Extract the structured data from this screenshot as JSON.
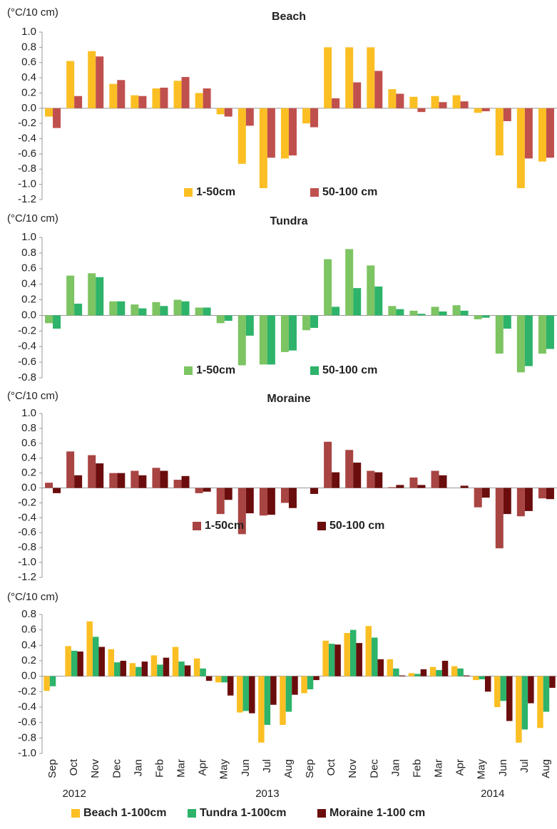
{
  "chart_data": [
    {
      "type": "bar",
      "title": "Beach",
      "y_unit_label": "(°C/10 cm)",
      "categories": [
        "Sep",
        "Oct",
        "Nov",
        "Dec",
        "Jan",
        "Feb",
        "Mar",
        "Apr",
        "May",
        "Jun",
        "Jul",
        "Aug",
        "Sep",
        "Oct",
        "Nov",
        "Dec",
        "Jan",
        "Feb",
        "Mar",
        "Apr",
        "May",
        "Jun",
        "Jul",
        "Aug"
      ],
      "series": [
        {
          "name": "1-50cm",
          "color": "#fbbf24",
          "values": [
            -0.11,
            0.62,
            0.75,
            0.32,
            0.17,
            0.26,
            0.36,
            0.2,
            -0.08,
            -0.73,
            -1.05,
            -0.66,
            -0.2,
            0.8,
            0.8,
            0.8,
            0.25,
            0.15,
            0.16,
            0.17,
            -0.06,
            -0.62,
            -1.05,
            -0.7
          ]
        },
        {
          "name": "50-100 cm",
          "color": "#c0504d",
          "values": [
            -0.26,
            0.16,
            0.68,
            0.37,
            0.16,
            0.27,
            0.41,
            0.26,
            -0.11,
            -0.23,
            -0.65,
            -0.62,
            -0.25,
            0.13,
            0.34,
            0.49,
            0.19,
            -0.05,
            0.08,
            0.09,
            -0.04,
            -0.17,
            -0.66,
            -0.65
          ]
        }
      ],
      "ylim": [
        -1.2,
        1.0
      ],
      "yticks": [
        {
          "value": 1.0,
          "label": "1.0"
        },
        {
          "value": 0.8,
          "label": "0.8"
        },
        {
          "value": 0.6,
          "label": "0.6"
        },
        {
          "value": 0.4,
          "label": "0.4"
        },
        {
          "value": 0.2,
          "label": "0.2"
        },
        {
          "value": 0,
          "label": "0.0"
        },
        {
          "value": -0.2,
          "label": "-0.2"
        },
        {
          "value": -0.4,
          "label": "-0.4"
        },
        {
          "value": -0.6,
          "label": "-0.6"
        },
        {
          "value": -0.8,
          "label": "-0.8"
        },
        {
          "value": -1.0,
          "label": "-1.0"
        },
        {
          "value": -1.2,
          "label": "-1.2"
        }
      ],
      "grid": false,
      "legend": "bottom"
    },
    {
      "type": "bar",
      "title": "Tundra",
      "y_unit_label": "(°C/10 cm)",
      "categories": [
        "Sep",
        "Oct",
        "Nov",
        "Dec",
        "Jan",
        "Feb",
        "Mar",
        "Apr",
        "May",
        "Jun",
        "Jul",
        "Aug",
        "Sep",
        "Oct",
        "Nov",
        "Dec",
        "Jan",
        "Feb",
        "Mar",
        "Apr",
        "May",
        "Jun",
        "Jul",
        "Aug"
      ],
      "series": [
        {
          "name": "1-50cm",
          "color": "#7dc462",
          "values": [
            -0.1,
            0.51,
            0.54,
            0.18,
            0.14,
            0.17,
            0.2,
            0.1,
            -0.1,
            -0.64,
            -0.63,
            -0.47,
            -0.19,
            0.72,
            0.85,
            0.64,
            0.12,
            0.06,
            0.11,
            0.13,
            -0.05,
            -0.49,
            -0.73,
            -0.49
          ]
        },
        {
          "name": "50-100 cm",
          "color": "#2db36a",
          "values": [
            -0.17,
            0.15,
            0.49,
            0.18,
            0.09,
            0.12,
            0.18,
            0.1,
            -0.07,
            -0.26,
            -0.63,
            -0.45,
            -0.16,
            0.11,
            0.35,
            0.37,
            0.08,
            0.02,
            0.05,
            0.06,
            -0.03,
            -0.17,
            -0.65,
            -0.43
          ]
        }
      ],
      "ylim": [
        -0.8,
        1.0
      ],
      "yticks": [
        {
          "value": 1.0,
          "label": "1.0"
        },
        {
          "value": 0.8,
          "label": "0.8"
        },
        {
          "value": 0.6,
          "label": "0.6"
        },
        {
          "value": 0.4,
          "label": "0.4"
        },
        {
          "value": 0.2,
          "label": "0.2"
        },
        {
          "value": 0,
          "label": "0.0"
        },
        {
          "value": -0.2,
          "label": "-0.2"
        },
        {
          "value": -0.4,
          "label": "-0.4"
        },
        {
          "value": -0.6,
          "label": "-0.6"
        },
        {
          "value": -0.8,
          "label": "-0.8"
        }
      ],
      "grid": false,
      "legend": "bottom"
    },
    {
      "type": "bar",
      "title": "Moraine",
      "y_unit_label": "(°C/10 cm)",
      "categories": [
        "Sep",
        "Oct",
        "Nov",
        "Dec",
        "Jan",
        "Feb",
        "Mar",
        "Apr",
        "May",
        "Jun",
        "Jul",
        "Aug",
        "Sep",
        "Oct",
        "Nov",
        "Dec",
        "Jan",
        "Feb",
        "Mar",
        "Apr",
        "May",
        "Jun",
        "Jul",
        "Aug"
      ],
      "series": [
        {
          "name": "1-50cm",
          "color": "#a84442",
          "values": [
            0.07,
            0.49,
            0.44,
            0.2,
            0.23,
            0.27,
            0.11,
            -0.07,
            -0.35,
            -0.62,
            -0.37,
            -0.2,
            0,
            0.62,
            0.51,
            0.23,
            0.01,
            0.14,
            0.23,
            0,
            -0.26,
            -0.81,
            -0.38,
            -0.14
          ]
        },
        {
          "name": "50-100 cm",
          "color": "#6b0d0d",
          "values": [
            -0.07,
            0.17,
            0.33,
            0.2,
            0.17,
            0.23,
            0.16,
            -0.05,
            -0.16,
            -0.34,
            -0.36,
            -0.27,
            -0.08,
            0.21,
            0.34,
            0.21,
            0.04,
            0.04,
            0.17,
            0.03,
            -0.13,
            -0.35,
            -0.31,
            -0.15
          ]
        }
      ],
      "ylim": [
        -1.2,
        1.0
      ],
      "yticks": [
        {
          "value": 1.0,
          "label": "1.0"
        },
        {
          "value": 0.8,
          "label": "0.8"
        },
        {
          "value": 0.6,
          "label": "0.6"
        },
        {
          "value": 0.4,
          "label": "0.4"
        },
        {
          "value": 0.2,
          "label": "0.2"
        },
        {
          "value": 0,
          "label": "0.0"
        },
        {
          "value": -0.2,
          "label": "-0.2"
        },
        {
          "value": -0.4,
          "label": "-0.4"
        },
        {
          "value": -0.6,
          "label": "-0.6"
        },
        {
          "value": -0.8,
          "label": "-0.8"
        },
        {
          "value": -1.0,
          "label": "-1.0"
        },
        {
          "value": -1.2,
          "label": "-1.2"
        }
      ],
      "grid": false,
      "legend": "bottom"
    },
    {
      "type": "bar",
      "y_unit_label": "(°C/10 cm)",
      "categories": [
        "Sep",
        "Oct",
        "Nov",
        "Dec",
        "Jan",
        "Feb",
        "Mar",
        "Apr",
        "May",
        "Jun",
        "Jul",
        "Aug",
        "Sep",
        "Oct",
        "Nov",
        "Dec",
        "Jan",
        "Feb",
        "Mar",
        "Apr",
        "May",
        "Jun",
        "Jul",
        "Aug"
      ],
      "year_labels": [
        "2012",
        "2013",
        "2014"
      ],
      "series": [
        {
          "name": "Beach 1-100cm",
          "color": "#fbbf24",
          "values": [
            -0.19,
            0.39,
            0.71,
            0.35,
            0.17,
            0.27,
            0.38,
            0.23,
            -0.08,
            -0.47,
            -0.86,
            -0.63,
            -0.22,
            0.46,
            0.56,
            0.65,
            0.22,
            0.04,
            0.12,
            0.13,
            -0.05,
            -0.4,
            -0.86,
            -0.67
          ]
        },
        {
          "name": "Tundra 1-100cm",
          "color": "#2db36a",
          "values": [
            -0.13,
            0.33,
            0.51,
            0.18,
            0.12,
            0.15,
            0.19,
            0.1,
            -0.08,
            -0.45,
            -0.63,
            -0.46,
            -0.17,
            0.42,
            0.6,
            0.5,
            0.1,
            0.03,
            0.08,
            0.1,
            -0.04,
            -0.32,
            -0.69,
            -0.46
          ]
        },
        {
          "name": "Moraine 1-100 cm",
          "color": "#6b0d0d",
          "values": [
            0,
            0.32,
            0.38,
            0.2,
            0.19,
            0.24,
            0.14,
            -0.06,
            -0.25,
            -0.48,
            -0.37,
            -0.24,
            -0.05,
            0.41,
            0.43,
            0.22,
            0.01,
            0.09,
            0.2,
            0.01,
            -0.2,
            -0.58,
            -0.35,
            -0.15
          ]
        }
      ],
      "ylim": [
        -1.0,
        0.8
      ],
      "yticks": [
        {
          "value": 0.8,
          "label": "0.8"
        },
        {
          "value": 0.6,
          "label": "0.6"
        },
        {
          "value": 0.4,
          "label": "0.4"
        },
        {
          "value": 0.2,
          "label": "0.2"
        },
        {
          "value": 0,
          "label": "0.0"
        },
        {
          "value": -0.2,
          "label": "-0.2"
        },
        {
          "value": -0.4,
          "label": "-0.4"
        },
        {
          "value": -0.6,
          "label": "-0.6"
        },
        {
          "value": -0.8,
          "label": "-0.8"
        },
        {
          "value": -1.0,
          "label": "-1.0"
        }
      ],
      "grid": false,
      "legend": "below"
    }
  ]
}
